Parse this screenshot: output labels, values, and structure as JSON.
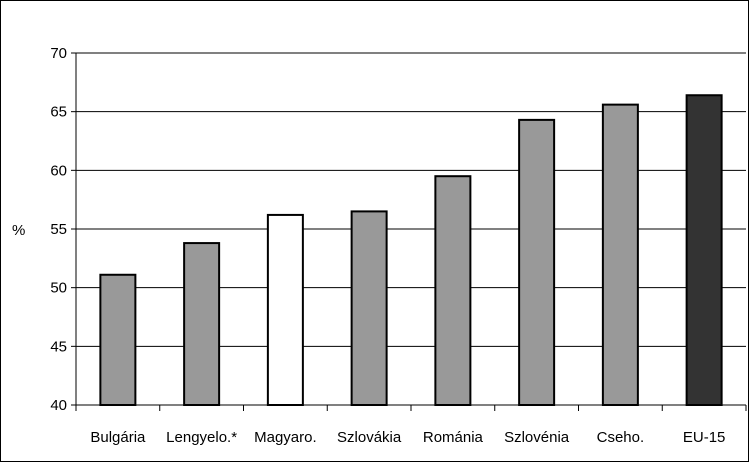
{
  "chart_data": {
    "type": "bar",
    "categories": [
      "Bulgária",
      "Lengyelo.*",
      "Magyaro.",
      "Szlovákia",
      "Románia",
      "Szlovénia",
      "Cseho.",
      "EU-15"
    ],
    "values": [
      51.1,
      53.8,
      56.2,
      56.5,
      59.5,
      64.3,
      65.6,
      66.4
    ],
    "bar_colors": [
      "#999999",
      "#999999",
      "#ffffff",
      "#999999",
      "#999999",
      "#999999",
      "#999999",
      "#333333"
    ],
    "ylabel": "%",
    "ylim": [
      40,
      70
    ],
    "yticks": [
      40,
      45,
      50,
      55,
      60,
      65,
      70
    ],
    "grid": true,
    "legend": "none"
  }
}
